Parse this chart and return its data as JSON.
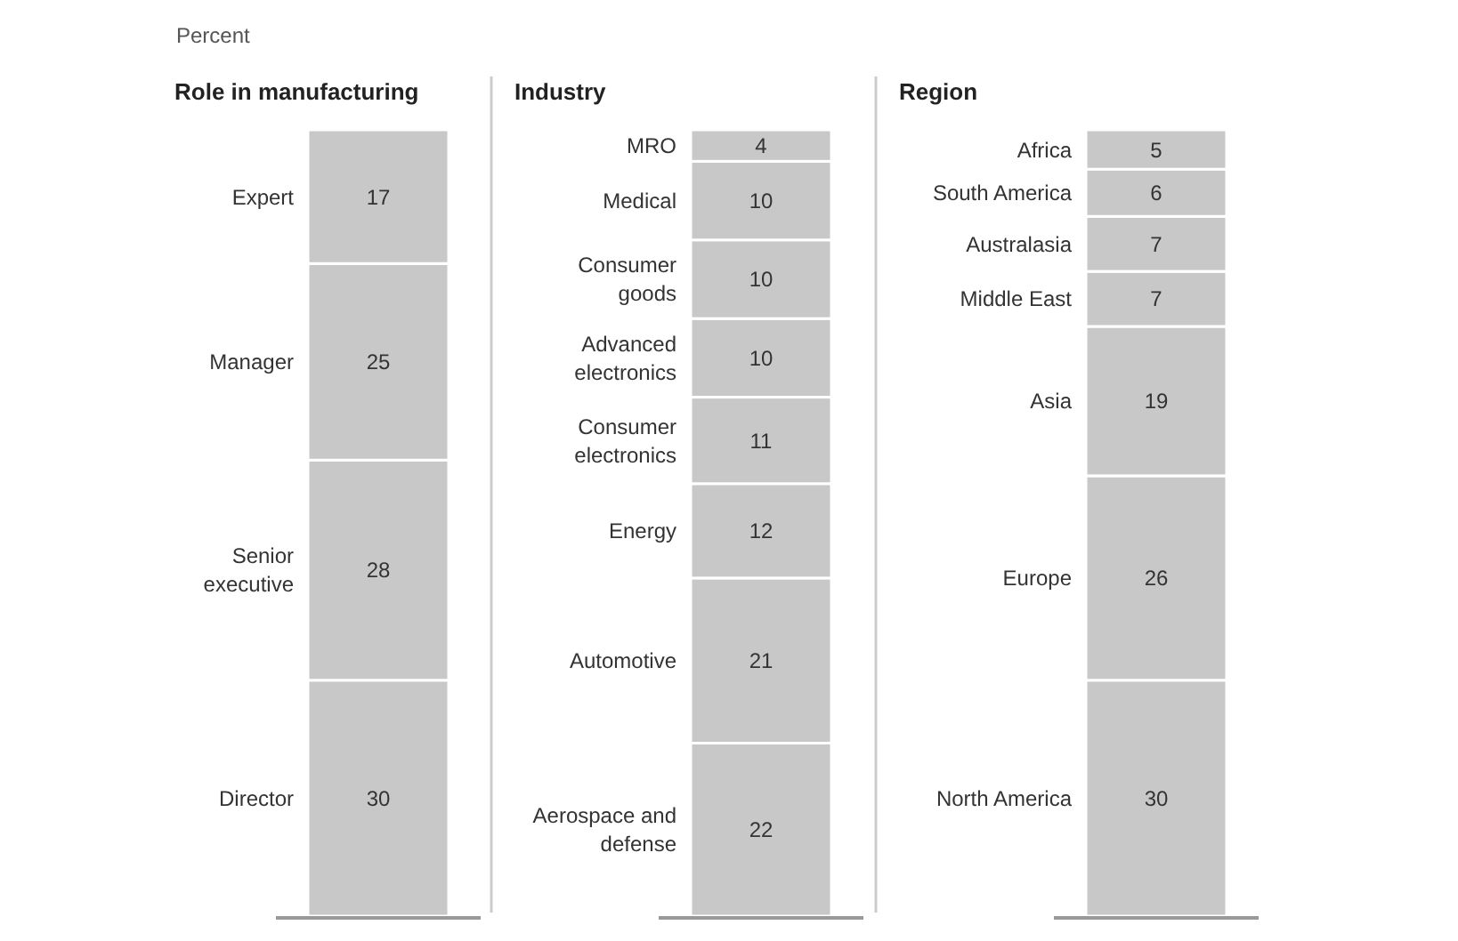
{
  "chart_data": [
    {
      "type": "bar",
      "stacked": true,
      "title": "Role in manufacturing",
      "subtitle": "Percent",
      "categories": [
        null
      ],
      "ylim": [
        0,
        100
      ],
      "tick_labels": false,
      "data_labels": true,
      "legend": false,
      "series": [
        {
          "name": "Director",
          "color": "#c8c8c8",
          "values": [
            30
          ]
        },
        {
          "name": "Senior executive",
          "color": "#c8c8c8",
          "values": [
            28
          ]
        },
        {
          "name": "Manager",
          "color": "#c8c8c8",
          "values": [
            25
          ]
        },
        {
          "name": "Expert",
          "color": "#c8c8c8",
          "values": [
            17
          ]
        }
      ]
    },
    {
      "type": "bar",
      "stacked": true,
      "title": "Industry",
      "categories": [
        null
      ],
      "ylim": [
        0,
        100
      ],
      "tick_labels": false,
      "data_labels": true,
      "legend": false,
      "series": [
        {
          "name": "Aerospace and defense",
          "color": "#c8c8c8",
          "values": [
            22
          ]
        },
        {
          "name": "Automotive",
          "color": "#c8c8c8",
          "values": [
            21
          ]
        },
        {
          "name": "Energy",
          "color": "#c8c8c8",
          "values": [
            12
          ]
        },
        {
          "name": "Consumer electronics",
          "color": "#c8c8c8",
          "values": [
            11
          ]
        },
        {
          "name": "Advanced electronics",
          "color": "#c8c8c8",
          "values": [
            10
          ]
        },
        {
          "name": "Consumer goods",
          "color": "#c8c8c8",
          "values": [
            10
          ]
        },
        {
          "name": "Medical",
          "color": "#c8c8c8",
          "values": [
            10
          ]
        },
        {
          "name": "MRO",
          "color": "#c8c8c8",
          "values": [
            4
          ]
        }
      ]
    },
    {
      "type": "bar",
      "stacked": true,
      "title": "Region",
      "categories": [
        null
      ],
      "ylim": [
        0,
        100
      ],
      "tick_labels": false,
      "data_labels": true,
      "legend": false,
      "series": [
        {
          "name": "North America",
          "color": "#c8c8c8",
          "values": [
            30
          ]
        },
        {
          "name": "Europe",
          "color": "#c8c8c8",
          "values": [
            26
          ]
        },
        {
          "name": "Asia",
          "color": "#c8c8c8",
          "values": [
            19
          ]
        },
        {
          "name": "Middle East",
          "color": "#c8c8c8",
          "values": [
            7
          ]
        },
        {
          "name": "Australasia",
          "color": "#c8c8c8",
          "values": [
            7
          ]
        },
        {
          "name": "South America",
          "color": "#c8c8c8",
          "values": [
            6
          ]
        },
        {
          "name": "Africa",
          "color": "#c8c8c8",
          "values": [
            5
          ]
        }
      ]
    }
  ]
}
